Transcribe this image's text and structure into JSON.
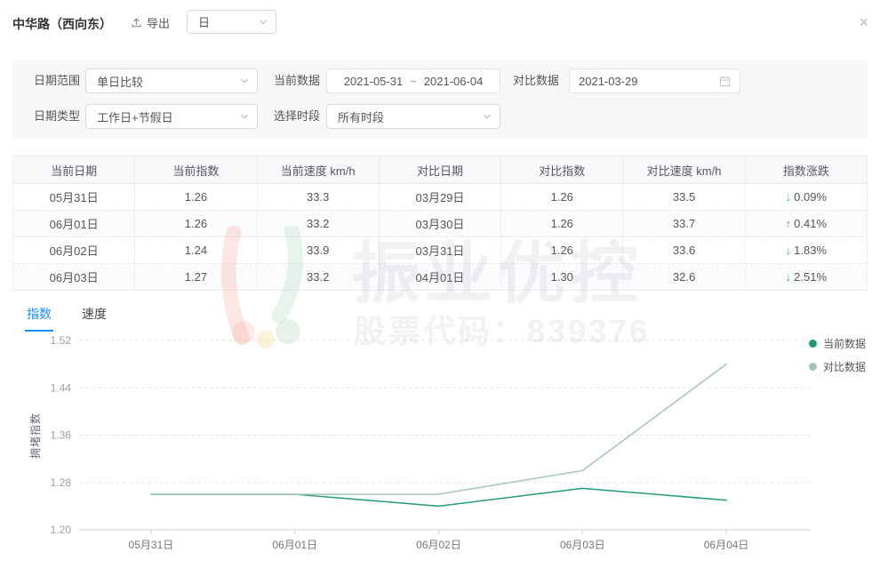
{
  "header": {
    "title": "中华路（西向东）",
    "export_label": "导出",
    "granularity_value": "日",
    "close_glyph": "×"
  },
  "filters": {
    "date_range": {
      "label": "日期范围",
      "value": "单日比较"
    },
    "current_data": {
      "label": "当前数据",
      "start": "2021-05-31",
      "separator": "~",
      "end": "2021-06-04"
    },
    "compare_data": {
      "label": "对比数据",
      "value": "2021-03-29"
    },
    "date_type": {
      "label": "日期类型",
      "value": "工作日+节假日"
    },
    "time_period": {
      "label": "选择时段",
      "value": "所有时段"
    }
  },
  "table": {
    "headers": [
      "当前日期",
      "当前指数",
      "当前速度 km/h",
      "对比日期",
      "对比指数",
      "对比速度 km/h",
      "指数涨跌"
    ],
    "rows": [
      {
        "current_date": "05月31日",
        "current_index": "1.26",
        "current_speed": "33.3",
        "compare_date": "03月29日",
        "compare_index": "1.26",
        "compare_speed": "33.5",
        "change_dir": "down",
        "change_value": "0.09%"
      },
      {
        "current_date": "06月01日",
        "current_index": "1.26",
        "current_speed": "33.2",
        "compare_date": "03月30日",
        "compare_index": "1.26",
        "compare_speed": "33.7",
        "change_dir": "up",
        "change_value": "0.41%"
      },
      {
        "current_date": "06月02日",
        "current_index": "1.24",
        "current_speed": "33.9",
        "compare_date": "03月31日",
        "compare_index": "1.26",
        "compare_speed": "33.6",
        "change_dir": "down",
        "change_value": "1.83%"
      },
      {
        "current_date": "06月03日",
        "current_index": "1.27",
        "current_speed": "33.2",
        "compare_date": "04月01日",
        "compare_index": "1.30",
        "compare_speed": "32.6",
        "change_dir": "down",
        "change_value": "2.51%"
      }
    ]
  },
  "tabs": [
    {
      "label": "指数",
      "active": true
    },
    {
      "label": "速度",
      "active": false
    }
  ],
  "watermark": {
    "brand": "振业优控",
    "line2": "股票代码：839376"
  },
  "chart_data": {
    "type": "line",
    "categories": [
      "05月31日",
      "06月01日",
      "06月02日",
      "06月03日",
      "06月04日"
    ],
    "series": [
      {
        "name": "当前数据",
        "color": "#23997a",
        "values": [
          1.26,
          1.26,
          1.24,
          1.27,
          1.25
        ]
      },
      {
        "name": "对比数据",
        "color": "#a4c4b5",
        "values": [
          1.26,
          1.26,
          1.26,
          1.3,
          1.48
        ]
      }
    ],
    "title": "",
    "xlabel": "",
    "ylabel": "拥堵指数",
    "ylim": [
      1.2,
      1.52
    ],
    "yticks": [
      1.2,
      1.28,
      1.36,
      1.44,
      1.52
    ],
    "grid": "dashed-horizontal",
    "legend_position": "top-right"
  },
  "colors": {
    "accent": "#1890ff",
    "up": "#f0615c",
    "down": "#2ab5a0",
    "panel_bg": "#f6f7f9"
  }
}
